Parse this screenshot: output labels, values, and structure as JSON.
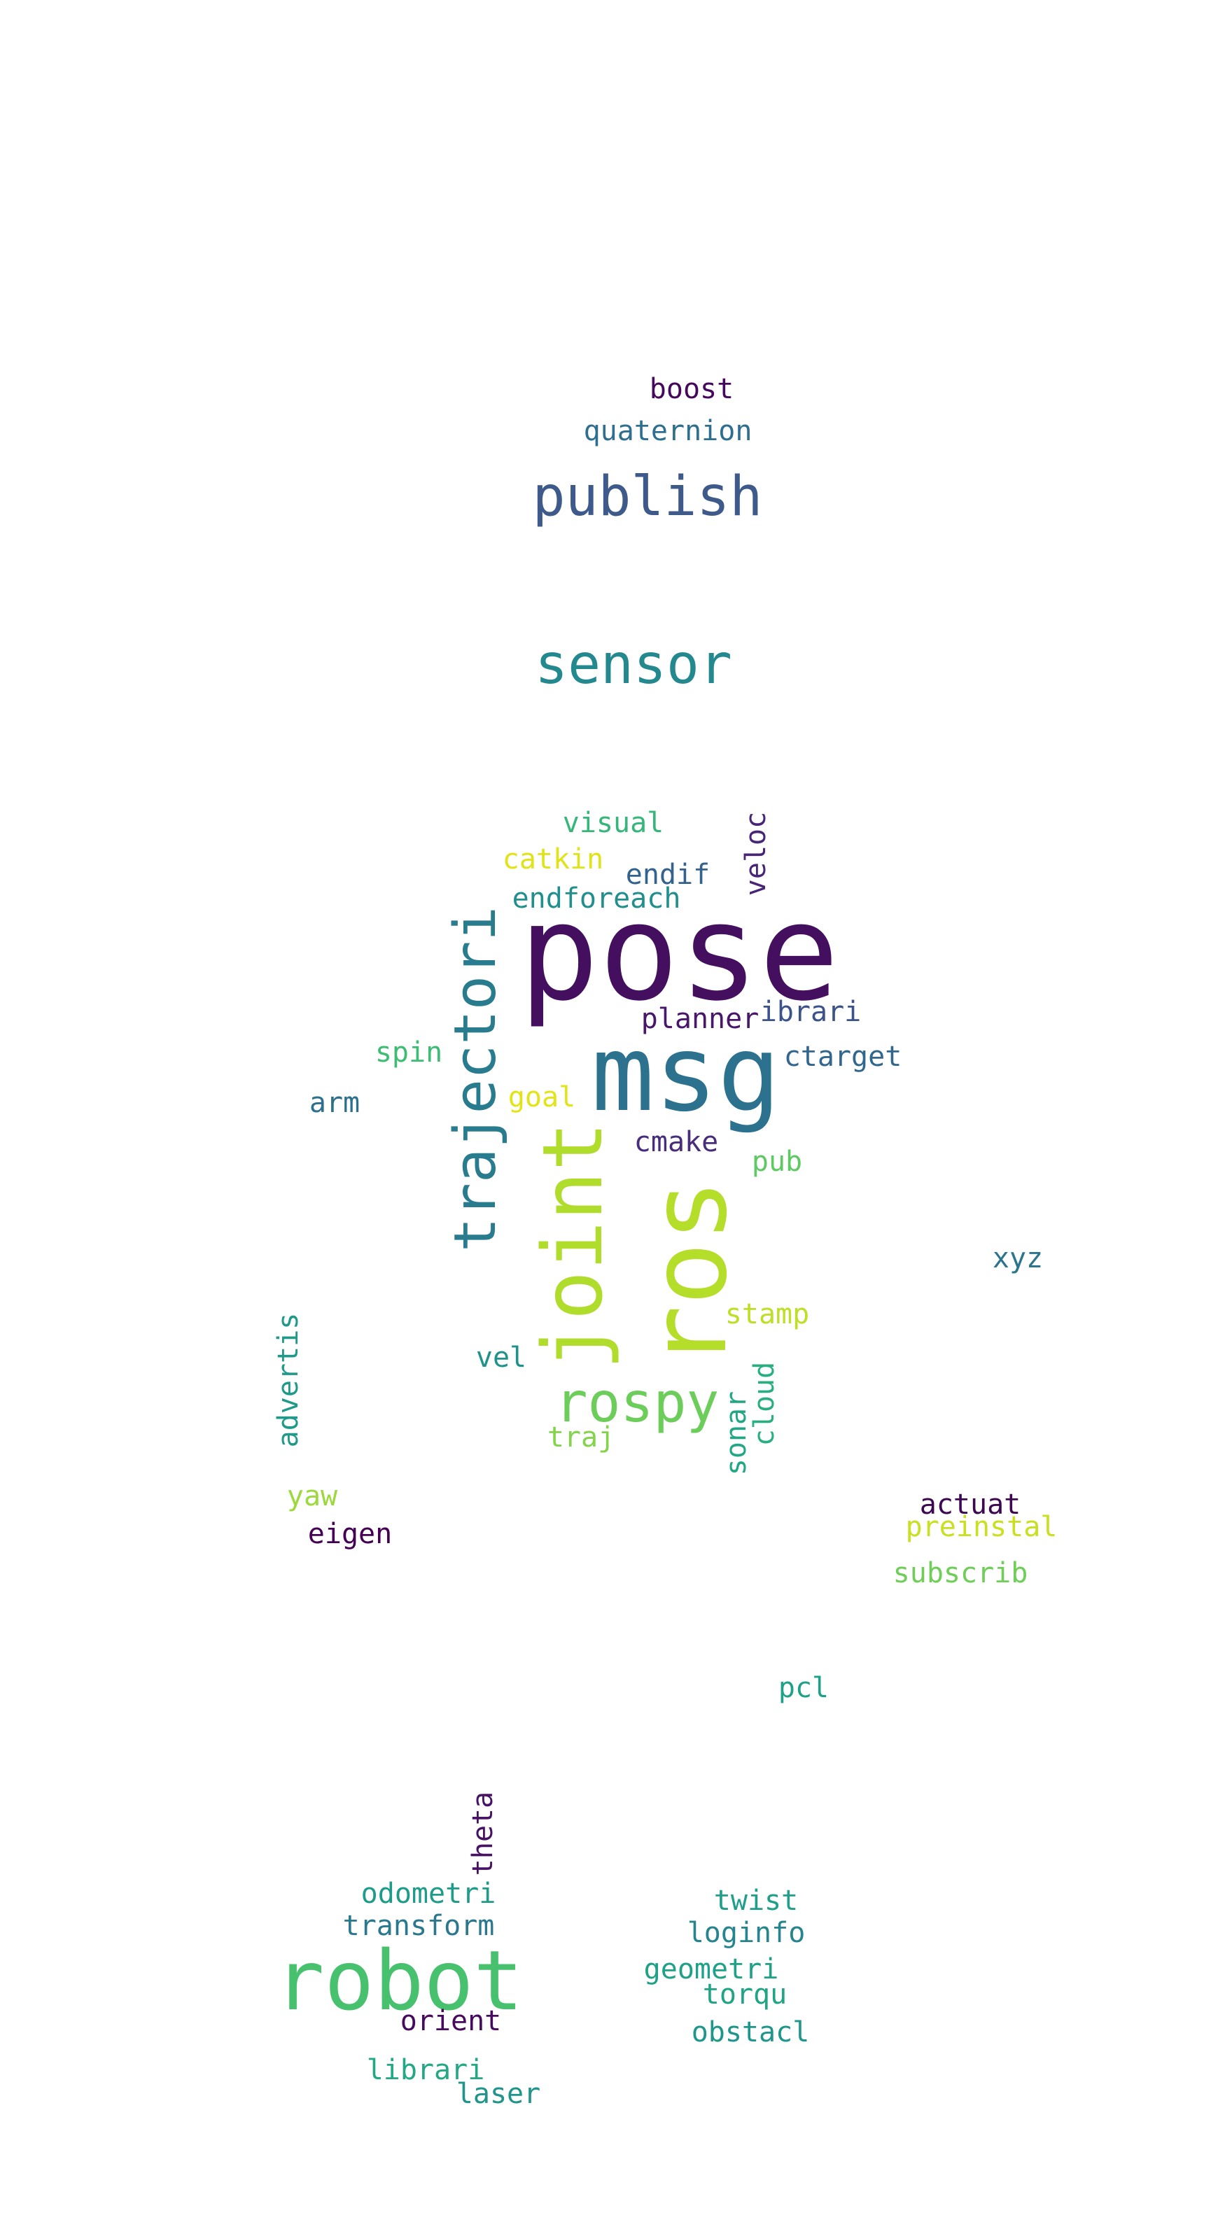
{
  "word_cloud": {
    "words": [
      {
        "text": "pose",
        "color": "#440f5f"
      },
      {
        "text": "msg",
        "color": "#2c728e"
      },
      {
        "text": "ros",
        "color": "#b5de2b"
      },
      {
        "text": "joint",
        "color": "#b0dc2c"
      },
      {
        "text": "trajectori",
        "color": "#287c8e"
      },
      {
        "text": "robot",
        "color": "#48c16e"
      },
      {
        "text": "publish",
        "color": "#3e5a8b"
      },
      {
        "text": "sensor",
        "color": "#23898e"
      },
      {
        "text": "rospy",
        "color": "#6ccd5a"
      },
      {
        "text": "boost",
        "color": "#46085c"
      },
      {
        "text": "quaternion",
        "color": "#2e6e8e"
      },
      {
        "text": "visual",
        "color": "#35b779"
      },
      {
        "text": "catkin",
        "color": "#dfe318"
      },
      {
        "text": "endif",
        "color": "#33628d"
      },
      {
        "text": "endforeach",
        "color": "#218f8d"
      },
      {
        "text": "veloc",
        "color": "#482576"
      },
      {
        "text": "planner",
        "color": "#481769"
      },
      {
        "text": "ibrari",
        "color": "#3b528b"
      },
      {
        "text": "ctarget",
        "color": "#31668e"
      },
      {
        "text": "spin",
        "color": "#3dbc74"
      },
      {
        "text": "arm",
        "color": "#2d708e"
      },
      {
        "text": "goal",
        "color": "#e2e418"
      },
      {
        "text": "cmake",
        "color": "#472d7b"
      },
      {
        "text": "pub",
        "color": "#5ec962"
      },
      {
        "text": "xyz",
        "color": "#2b758e"
      },
      {
        "text": "stamp",
        "color": "#bddf26"
      },
      {
        "text": "advertis",
        "color": "#1f9a8a"
      },
      {
        "text": "vel",
        "color": "#20928c"
      },
      {
        "text": "traj",
        "color": "#84d44b"
      },
      {
        "text": "sonar",
        "color": "#22a785"
      },
      {
        "text": "cloud",
        "color": "#29af7f"
      },
      {
        "text": "yaw",
        "color": "#9bd93c"
      },
      {
        "text": "eigen",
        "color": "#440154"
      },
      {
        "text": "actuat",
        "color": "#3e0751"
      },
      {
        "text": "preinstal",
        "color": "#c8e020"
      },
      {
        "text": "subscrib",
        "color": "#6ece58"
      },
      {
        "text": "pcl",
        "color": "#1fa088"
      },
      {
        "text": "theta",
        "color": "#471164"
      },
      {
        "text": "odometri",
        "color": "#1e9c89"
      },
      {
        "text": "transform",
        "color": "#2a788e"
      },
      {
        "text": "twist",
        "color": "#1f9e89"
      },
      {
        "text": "loginfo",
        "color": "#25848e"
      },
      {
        "text": "geometri",
        "color": "#1fa187"
      },
      {
        "text": "torqu",
        "color": "#20a486"
      },
      {
        "text": "orient",
        "color": "#460b5e"
      },
      {
        "text": "obstacl",
        "color": "#1f968b"
      },
      {
        "text": "librari",
        "color": "#22a884"
      },
      {
        "text": "laser",
        "color": "#1f948c"
      }
    ]
  }
}
